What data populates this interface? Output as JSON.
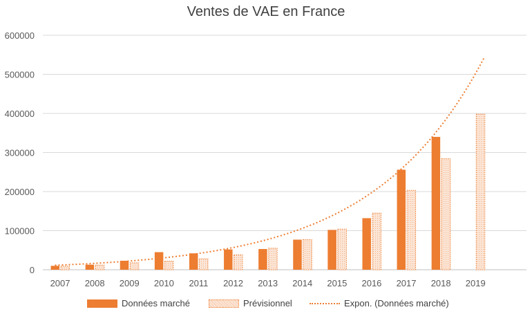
{
  "chart_data": {
    "type": "bar",
    "title": "Ventes de VAE en France",
    "xlabel": "",
    "ylabel": "",
    "ylim": [
      0,
      600000
    ],
    "y_ticks": [
      "0",
      "100000",
      "200000",
      "300000",
      "400000",
      "500000",
      "600000"
    ],
    "grid": true,
    "legend_position": "bottom",
    "categories": [
      "2007",
      "2008",
      "2009",
      "2010",
      "2011",
      "2012",
      "2013",
      "2014",
      "2015",
      "2016",
      "2017",
      "2018",
      "2019"
    ],
    "series": [
      {
        "name": "Données marché",
        "style": "solid",
        "color": "#ed7d31",
        "values": [
          10000,
          13000,
          23000,
          45000,
          42000,
          52000,
          53000,
          77000,
          102000,
          132000,
          256000,
          340000,
          null
        ]
      },
      {
        "name": "Prévisionnel",
        "style": "dotted-pattern",
        "color": "#fbe5d6",
        "border_color": "#ed7d31",
        "values": [
          9000,
          12000,
          18000,
          22000,
          28000,
          38000,
          55000,
          77000,
          104000,
          145000,
          203000,
          284000,
          398000
        ]
      }
    ],
    "trendline": {
      "name": "Expon. (Données marché)",
      "type": "exponential",
      "style": "dotted",
      "color": "#ed7d31",
      "start_value": 12000,
      "growth_factor": 1.365,
      "extends_to_category_position": 13
    }
  }
}
